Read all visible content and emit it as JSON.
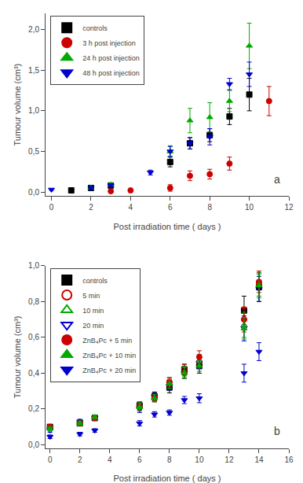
{
  "chart_data": [
    {
      "type": "scatter",
      "title": "a",
      "x_label": "Post irradiation time ( days )",
      "y_label": "Tumour volume (cm³)",
      "xlim": [
        -0.3,
        12
      ],
      "ylim": [
        -0.05,
        2.2
      ],
      "xticks": [
        0,
        2,
        4,
        6,
        8,
        10,
        12
      ],
      "yticks": [
        {
          "value": 0.0,
          "label": "0,0"
        },
        {
          "value": 0.5,
          "label": "0,5"
        },
        {
          "value": 1.0,
          "label": "1,0"
        },
        {
          "value": 1.5,
          "label": "1,5"
        },
        {
          "value": 2.0,
          "label": "2,0"
        }
      ],
      "grid": false,
      "legend": "upper left",
      "series": [
        {
          "name": "controls",
          "color": "#000000",
          "marker": "square",
          "x": [
            1,
            2,
            3,
            6,
            7,
            8,
            9,
            10
          ],
          "values": [
            0.02,
            0.05,
            0.08,
            0.37,
            0.6,
            0.7,
            0.93,
            1.2
          ],
          "yerr": [
            0.01,
            0.015,
            0.015,
            0.06,
            0.07,
            0.08,
            0.1,
            0.2
          ]
        },
        {
          "name": "3 h post injection",
          "color": "#cc0000",
          "marker": "circle",
          "x": [
            3,
            4,
            6,
            7,
            8,
            9,
            11
          ],
          "values": [
            0.01,
            0.02,
            0.05,
            0.2,
            0.22,
            0.35,
            1.12
          ],
          "yerr": [
            0.005,
            0.008,
            0.04,
            0.06,
            0.06,
            0.08,
            0.18
          ]
        },
        {
          "name": "24 h post injection",
          "color": "#00aa00",
          "marker": "triangle-up",
          "x": [
            2,
            3,
            6,
            7,
            8,
            9,
            10
          ],
          "values": [
            0.05,
            0.09,
            0.5,
            0.88,
            0.92,
            1.12,
            1.8
          ],
          "yerr": [
            0.015,
            0.02,
            0.07,
            0.15,
            0.18,
            0.13,
            0.28
          ]
        },
        {
          "name": "48 h post injection",
          "color": "#0000cc",
          "marker": "triangle-down",
          "x": [
            0,
            2,
            3,
            5,
            6,
            7,
            8,
            9,
            10
          ],
          "values": [
            0.03,
            0.05,
            0.08,
            0.24,
            0.5,
            0.6,
            0.68,
            1.33,
            1.45
          ],
          "yerr": [
            0.01,
            0.015,
            0.02,
            0.03,
            0.06,
            0.07,
            0.1,
            0.07,
            0.15
          ]
        }
      ]
    },
    {
      "type": "scatter",
      "title": "b",
      "x_label": "Post irradiation time ( days )",
      "y_label": "Tumour volume (cm³)",
      "xlim": [
        -0.3,
        16
      ],
      "ylim": [
        -0.02,
        1.0
      ],
      "xticks": [
        0,
        2,
        4,
        6,
        8,
        10,
        12,
        14,
        16
      ],
      "yticks": [
        {
          "value": 0.0,
          "label": "0,0"
        },
        {
          "value": 0.2,
          "label": "0,2"
        },
        {
          "value": 0.4,
          "label": "0,4"
        },
        {
          "value": 0.6,
          "label": "0,6"
        },
        {
          "value": 0.8,
          "label": "0,8"
        },
        {
          "value": 1.0,
          "label": "1,0"
        }
      ],
      "grid": false,
      "legend": "upper left",
      "series": [
        {
          "name": "controls",
          "color": "#000000",
          "marker": "square",
          "x": [
            0,
            2,
            3,
            6,
            7,
            8,
            9,
            10,
            13,
            14
          ],
          "values": [
            0.1,
            0.12,
            0.15,
            0.22,
            0.27,
            0.32,
            0.42,
            0.44,
            0.75,
            0.88
          ],
          "yerr": [
            0.01,
            0.015,
            0.015,
            0.02,
            0.025,
            0.03,
            0.03,
            0.04,
            0.08,
            0.08
          ]
        },
        {
          "name": "5 min",
          "color": "#cc0000",
          "marker": "circle-open",
          "x": [
            0,
            2,
            3,
            6,
            7,
            8,
            9,
            10,
            13,
            14
          ],
          "values": [
            0.1,
            0.12,
            0.15,
            0.21,
            0.27,
            0.35,
            0.42,
            0.46,
            0.7,
            0.9
          ],
          "yerr": [
            0.01,
            0.012,
            0.012,
            0.02,
            0.02,
            0.025,
            0.03,
            0.035,
            0.07,
            0.07
          ]
        },
        {
          "name": "10 min",
          "color": "#00aa00",
          "marker": "triangle-up-open",
          "x": [
            0,
            2,
            3,
            6,
            7,
            8,
            9,
            10,
            13,
            14
          ],
          "values": [
            0.1,
            0.13,
            0.15,
            0.22,
            0.26,
            0.34,
            0.41,
            0.47,
            0.67,
            0.89
          ],
          "yerr": [
            0.01,
            0.012,
            0.012,
            0.02,
            0.02,
            0.025,
            0.03,
            0.035,
            0.07,
            0.07
          ]
        },
        {
          "name": "20 min",
          "color": "#0000cc",
          "marker": "triangle-down-open",
          "x": [
            0,
            2,
            3,
            6,
            7,
            8,
            9,
            10,
            13,
            14
          ],
          "values": [
            0.08,
            0.13,
            0.15,
            0.2,
            0.27,
            0.33,
            0.4,
            0.46,
            0.65,
            0.87
          ],
          "yerr": [
            0.01,
            0.012,
            0.012,
            0.02,
            0.02,
            0.025,
            0.03,
            0.035,
            0.07,
            0.07
          ]
        },
        {
          "name": "ZnB₄Pc + 5 min",
          "color": "#cc0000",
          "marker": "circle",
          "x": [
            0,
            2,
            3,
            6,
            7,
            8,
            9,
            10,
            13,
            14
          ],
          "values": [
            0.1,
            0.12,
            0.15,
            0.21,
            0.26,
            0.35,
            0.4,
            0.49,
            0.7,
            0.91
          ],
          "yerr": [
            0.01,
            0.012,
            0.012,
            0.02,
            0.02,
            0.025,
            0.03,
            0.035,
            0.06,
            0.06
          ]
        },
        {
          "name": "ZnB₄Pc + 10 min",
          "color": "#00aa00",
          "marker": "triangle-up",
          "x": [
            0,
            2,
            3,
            6,
            7,
            8,
            9,
            10,
            13,
            14
          ],
          "values": [
            0.09,
            0.12,
            0.155,
            0.21,
            0.26,
            0.34,
            0.4,
            0.44,
            0.65,
            0.89
          ],
          "yerr": [
            0.01,
            0.012,
            0.012,
            0.02,
            0.02,
            0.025,
            0.03,
            0.03,
            0.06,
            0.06
          ]
        },
        {
          "name": "ZnB₄Pc + 20 min",
          "color": "#0000cc",
          "marker": "triangle-down",
          "x": [
            0,
            2,
            3,
            6,
            7,
            8,
            9,
            10,
            13,
            14
          ],
          "values": [
            0.045,
            0.06,
            0.08,
            0.12,
            0.17,
            0.18,
            0.25,
            0.26,
            0.4,
            0.52
          ],
          "yerr": [
            0.01,
            0.01,
            0.01,
            0.015,
            0.015,
            0.015,
            0.02,
            0.025,
            0.05,
            0.05
          ]
        }
      ]
    }
  ]
}
